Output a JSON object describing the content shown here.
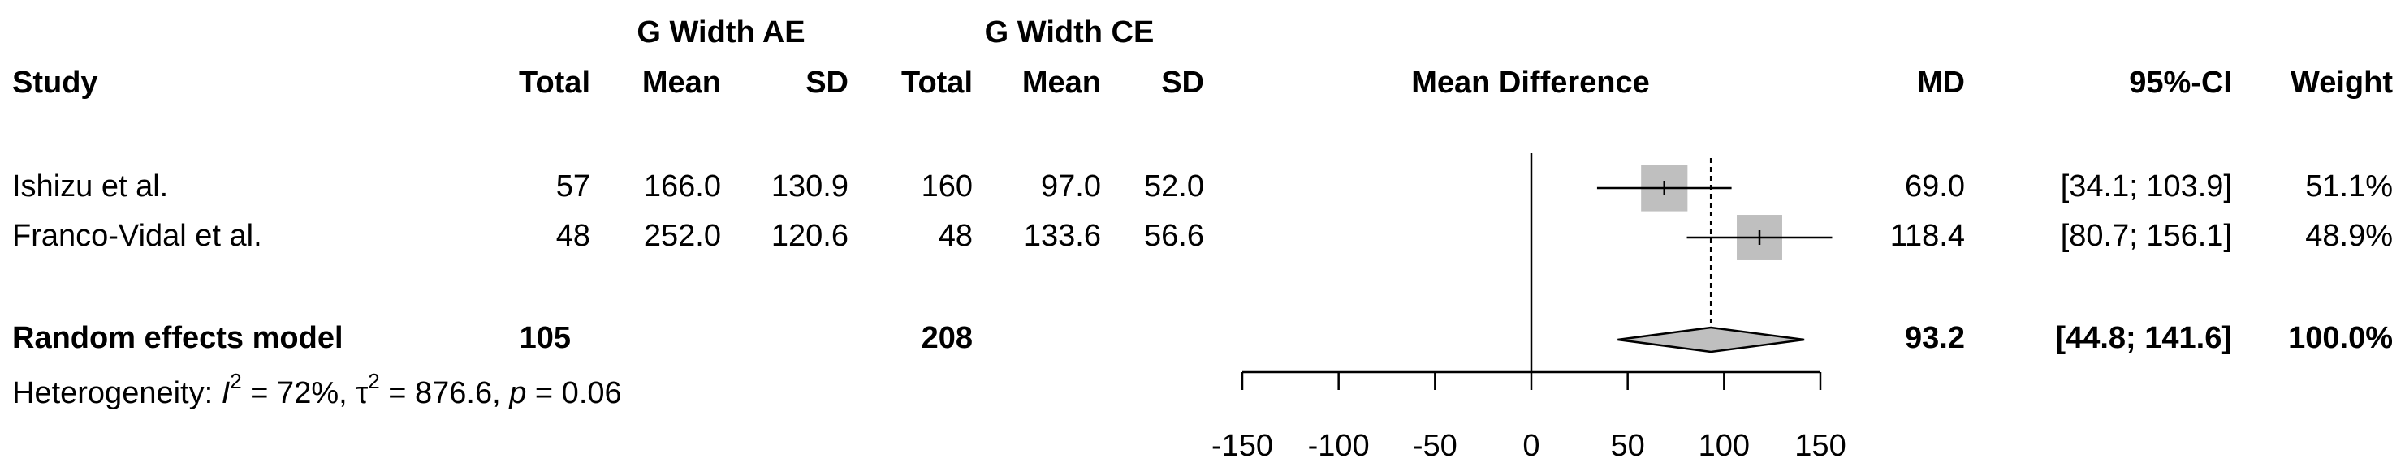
{
  "chart_data": {
    "type": "forest",
    "headers": {
      "study": "Study",
      "group_ae": "G Width AE",
      "group_ce": "G Width CE",
      "columns": [
        "Total",
        "Mean",
        "SD",
        "Total",
        "Mean",
        "SD"
      ],
      "plot": "Mean Difference",
      "md": "MD",
      "ci": "95%-CI",
      "weight": "Weight"
    },
    "studies": [
      {
        "name": "Ishizu et al.",
        "cells": [
          "57",
          "166.0",
          "130.9",
          "160",
          "97.0",
          "52.0"
        ],
        "md": 69,
        "md_label": "69.0",
        "ci": [
          34.1,
          103.9
        ],
        "ci_label": "[34.1; 103.9]",
        "weight": 51.1,
        "weight_label": "51.1%"
      },
      {
        "name": "Franco-Vidal et al.",
        "cells": [
          "48",
          "252.0",
          "120.6",
          "48",
          "133.6",
          "56.6"
        ],
        "md": 118.4,
        "md_label": "118.4",
        "ci": [
          80.7,
          156.1
        ],
        "ci_label": "[80.7; 156.1]",
        "weight": 48.9,
        "weight_label": "48.9%"
      }
    ],
    "pooled": {
      "name": "Random effects model",
      "totals": [
        "105",
        "208"
      ],
      "md": 93.2,
      "md_label": "93.2",
      "ci": [
        44.8,
        141.6
      ],
      "ci_label": "[44.8; 141.6]",
      "weight": 100,
      "weight_label": "100.0%"
    },
    "heterogeneity": [
      "Heterogeneity: ",
      "I",
      "2",
      " = 72%, ",
      "τ",
      "2",
      " = 876.6, ",
      "p",
      " = 0.06"
    ],
    "xlim": [
      -150,
      150
    ],
    "xticks": [
      -150,
      -100,
      -50,
      0,
      50,
      100,
      150
    ],
    "box_color": "#bfbfbf",
    "diamond_color": "#bfbfbf"
  }
}
